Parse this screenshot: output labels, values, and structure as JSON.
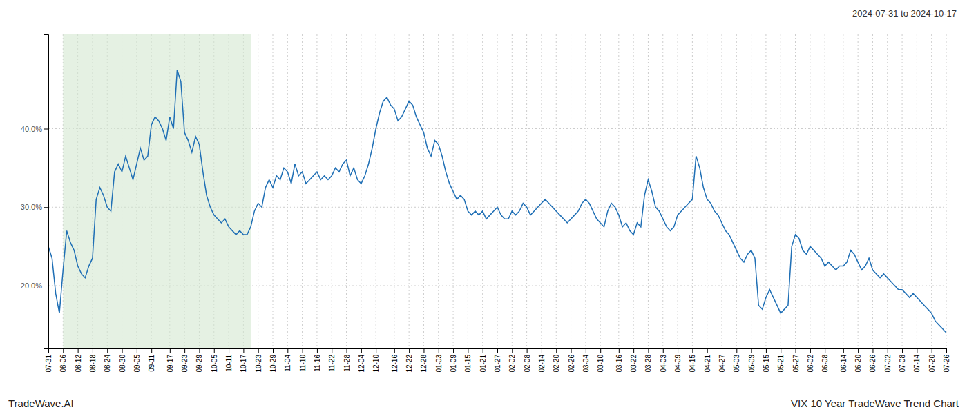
{
  "chart_data": {
    "type": "line",
    "title": "2024-07-31 to 2024-10-17",
    "annotations": [
      "TradeWave.AI",
      "VIX 10 Year TradeWave Trend Chart"
    ],
    "color": "#1f6fb5",
    "grid": true,
    "ylim": [
      12,
      52
    ],
    "yticks": [
      {
        "value": 20.0,
        "label": "20.0%"
      },
      {
        "value": 30.0,
        "label": "30.0%"
      },
      {
        "value": 40.0,
        "label": "40.0%"
      }
    ],
    "shade": {
      "from": 4,
      "to": 55,
      "color": "#d4e8d0"
    },
    "categories": [
      "07-31",
      null,
      null,
      null,
      "08-06",
      null,
      null,
      null,
      "08-12",
      null,
      null,
      null,
      "08-18",
      null,
      null,
      null,
      "08-24",
      null,
      null,
      null,
      "08-30",
      null,
      null,
      null,
      "09-05",
      null,
      null,
      null,
      "09-11",
      null,
      null,
      null,
      null,
      "09-17",
      null,
      null,
      null,
      "09-23",
      null,
      null,
      null,
      "09-29",
      null,
      null,
      null,
      "10-05",
      null,
      null,
      null,
      "10-11",
      null,
      null,
      null,
      "10-17",
      null,
      null,
      null,
      "10-23",
      null,
      null,
      null,
      "10-29",
      null,
      null,
      null,
      "11-04",
      null,
      null,
      null,
      "11-10",
      null,
      null,
      null,
      "11-16",
      null,
      null,
      null,
      "11-22",
      null,
      null,
      null,
      "11-28",
      null,
      null,
      null,
      "12-04",
      null,
      null,
      null,
      "12-10",
      null,
      null,
      null,
      null,
      "12-16",
      null,
      null,
      null,
      "12-22",
      null,
      null,
      null,
      "12-28",
      null,
      null,
      null,
      "01-03",
      null,
      null,
      null,
      "01-09",
      null,
      null,
      null,
      "01-15",
      null,
      null,
      null,
      "01-21",
      null,
      null,
      null,
      "01-27",
      null,
      null,
      null,
      "02-02",
      null,
      null,
      null,
      "02-08",
      null,
      null,
      null,
      "02-14",
      null,
      null,
      null,
      "02-20",
      null,
      null,
      null,
      "02-26",
      null,
      null,
      null,
      "03-04",
      null,
      null,
      null,
      "03-10",
      null,
      null,
      null,
      null,
      "03-16",
      null,
      null,
      null,
      "03-22",
      null,
      null,
      null,
      "03-28",
      null,
      null,
      null,
      "04-03",
      null,
      null,
      null,
      "04-09",
      null,
      null,
      null,
      "04-15",
      null,
      null,
      null,
      "04-21",
      null,
      null,
      null,
      "04-27",
      null,
      null,
      null,
      "05-03",
      null,
      null,
      null,
      "05-09",
      null,
      null,
      null,
      "05-15",
      null,
      null,
      null,
      "05-21",
      null,
      null,
      null,
      "05-27",
      null,
      null,
      null,
      "06-02",
      null,
      null,
      null,
      "06-08",
      null,
      null,
      null,
      null,
      "06-14",
      null,
      null,
      null,
      "06-20",
      null,
      null,
      null,
      "06-26",
      null,
      null,
      null,
      "07-02",
      null,
      null,
      null,
      "07-08",
      null,
      null,
      null,
      "07-14",
      null,
      null,
      null,
      "07-20",
      null,
      null,
      null,
      "07-26"
    ],
    "values": [
      25.0,
      23.5,
      19.0,
      16.5,
      22.0,
      27.0,
      25.5,
      24.5,
      22.5,
      21.5,
      21.0,
      22.5,
      23.5,
      31.0,
      32.5,
      31.5,
      30.0,
      29.5,
      34.5,
      35.5,
      34.5,
      36.5,
      35.0,
      33.5,
      35.5,
      37.5,
      36.0,
      36.5,
      40.5,
      41.5,
      41.0,
      40.0,
      38.5,
      41.5,
      40.0,
      47.5,
      46.0,
      39.5,
      38.5,
      37.0,
      39.0,
      38.0,
      34.5,
      31.5,
      30.0,
      29.0,
      28.5,
      28.0,
      28.5,
      27.5,
      27.0,
      26.5,
      27.0,
      26.5,
      26.5,
      27.5,
      29.5,
      30.5,
      30.0,
      32.5,
      33.5,
      32.5,
      34.0,
      33.5,
      35.0,
      34.5,
      33.0,
      35.5,
      34.0,
      34.5,
      33.0,
      33.5,
      34.0,
      34.5,
      33.5,
      34.0,
      33.5,
      34.0,
      35.0,
      34.5,
      35.5,
      36.0,
      34.0,
      35.0,
      33.5,
      33.0,
      34.0,
      35.5,
      37.5,
      40.0,
      42.0,
      43.5,
      44.0,
      43.0,
      42.5,
      41.0,
      41.5,
      42.5,
      43.5,
      43.0,
      41.5,
      40.5,
      39.5,
      37.5,
      36.5,
      38.5,
      38.0,
      36.5,
      34.5,
      33.0,
      32.0,
      31.0,
      31.5,
      31.0,
      29.5,
      29.0,
      29.5,
      29.0,
      29.5,
      28.5,
      29.0,
      29.5,
      30.0,
      29.0,
      28.5,
      28.5,
      29.5,
      29.0,
      29.5,
      30.5,
      30.0,
      29.0,
      29.5,
      30.0,
      30.5,
      31.0,
      30.5,
      30.0,
      29.5,
      29.0,
      28.5,
      28.0,
      28.5,
      29.0,
      29.5,
      30.5,
      31.0,
      30.5,
      29.5,
      28.5,
      28.0,
      27.5,
      29.5,
      30.5,
      30.0,
      29.0,
      27.5,
      28.0,
      27.0,
      26.5,
      28.0,
      27.5,
      31.5,
      33.5,
      32.0,
      30.0,
      29.5,
      28.5,
      27.5,
      27.0,
      27.5,
      29.0,
      29.5,
      30.0,
      30.5,
      31.0,
      36.5,
      35.0,
      32.5,
      31.0,
      30.5,
      29.5,
      29.0,
      28.0,
      27.0,
      26.5,
      25.5,
      24.5,
      23.5,
      23.0,
      24.0,
      24.5,
      23.5,
      17.5,
      17.0,
      18.5,
      19.5,
      18.5,
      17.5,
      16.5,
      17.0,
      17.5,
      25.0,
      26.5,
      26.0,
      24.5,
      24.0,
      25.0,
      24.5,
      24.0,
      23.5,
      22.5,
      23.0,
      22.5,
      22.0,
      22.5,
      22.5,
      23.0,
      24.5,
      24.0,
      23.0,
      22.0,
      22.5,
      23.5,
      22.0,
      21.5,
      21.0,
      21.5,
      21.0,
      20.5,
      20.0,
      19.5,
      19.5,
      19.0,
      18.5,
      19.0,
      18.5,
      18.0,
      17.5,
      17.0,
      16.5,
      15.5,
      15.0,
      14.5,
      14.0
    ]
  }
}
